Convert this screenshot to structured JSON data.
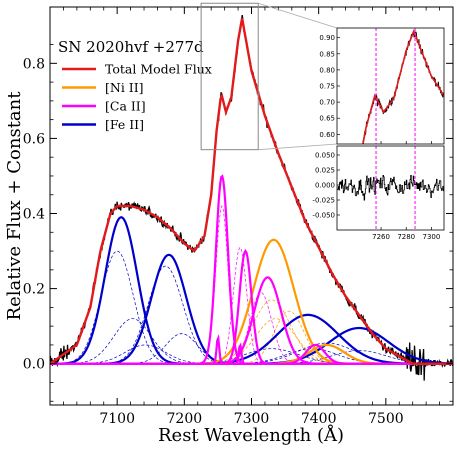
{
  "chart_data": [
    {
      "panel": "main",
      "type": "line",
      "title": "",
      "xlabel": "Rest Wavelength (Å)",
      "ylabel": "Relative Flux + Constant",
      "xlim": [
        7000,
        7600
      ],
      "ylim": [
        -0.11,
        0.95
      ],
      "x_ticks": [
        7100,
        7200,
        7300,
        7400,
        7500
      ],
      "y_ticks": [
        0.0,
        0.2,
        0.4,
        0.6,
        0.8
      ],
      "x_tick_labels": [
        "7100",
        "7200",
        "7300",
        "7400",
        "7500"
      ],
      "y_tick_labels": [
        "0.0",
        "0.2",
        "0.4",
        "0.6",
        "0.8"
      ],
      "grid": false,
      "legend_placement": "top-left",
      "legend_title": "SN 2020hvf +277d",
      "legend": [
        {
          "name": "Total Model Flux",
          "color": "#e31a1c"
        },
        {
          "name": "[Ni II]",
          "color": "#ff9900"
        },
        {
          "name": "[Ca II]",
          "color": "#ff00ff"
        },
        {
          "name": "[Fe II]",
          "color": "#0000cc"
        }
      ],
      "data_color": "#000000",
      "baseline": 0.0,
      "spectrum_points": [
        [
          7000,
          0.0
        ],
        [
          7040,
          0.05
        ],
        [
          7060,
          0.15
        ],
        [
          7075,
          0.3
        ],
        [
          7090,
          0.4
        ],
        [
          7100,
          0.42
        ],
        [
          7120,
          0.42
        ],
        [
          7140,
          0.41
        ],
        [
          7160,
          0.39
        ],
        [
          7180,
          0.36
        ],
        [
          7200,
          0.32
        ],
        [
          7215,
          0.3
        ],
        [
          7230,
          0.34
        ],
        [
          7240,
          0.45
        ],
        [
          7248,
          0.62
        ],
        [
          7255,
          0.72
        ],
        [
          7262,
          0.67
        ],
        [
          7270,
          0.71
        ],
        [
          7280,
          0.86
        ],
        [
          7286,
          0.92
        ],
        [
          7292,
          0.86
        ],
        [
          7300,
          0.78
        ],
        [
          7320,
          0.66
        ],
        [
          7340,
          0.56
        ],
        [
          7360,
          0.47
        ],
        [
          7380,
          0.38
        ],
        [
          7400,
          0.31
        ],
        [
          7420,
          0.24
        ],
        [
          7440,
          0.18
        ],
        [
          7460,
          0.13
        ],
        [
          7480,
          0.08
        ],
        [
          7500,
          0.04
        ],
        [
          7520,
          0.02
        ],
        [
          7540,
          0.0
        ],
        [
          7600,
          0.0
        ]
      ],
      "components": {
        "total_model": {
          "color": "#e31a1c"
        },
        "ni_ii": {
          "color": "#ff9900",
          "gaussians_solid": [
            [
              7333,
              0.33,
              30
            ],
            [
              7412,
              0.05,
              26
            ]
          ],
          "gaussians_dashed": [
            [
              7330,
              0.17,
              28
            ],
            [
              7336,
              0.12,
              30
            ],
            [
              7356,
              0.14,
              22
            ]
          ]
        },
        "ca_ii": {
          "color": "#ff00ff",
          "gaussians_solid": [
            [
              7256,
              0.5,
              9
            ],
            [
              7291,
              0.3,
              9
            ],
            [
              7324,
              0.23,
              20
            ],
            [
              7395,
              0.05,
              14
            ],
            [
              7250,
              0.07,
              2
            ],
            [
              7283,
              0.05,
              2
            ]
          ],
          "gaussians_dashed": [
            [
              7256,
              0.42,
              9
            ],
            [
              7283,
              0.31,
              10
            ],
            [
              7314,
              0.19,
              16
            ]
          ]
        },
        "fe_ii": {
          "color": "#0000cc",
          "gaussians_solid": [
            [
              7106,
              0.39,
              24
            ],
            [
              7177,
              0.29,
              26
            ],
            [
              7384,
              0.13,
              45
            ],
            [
              7460,
              0.095,
              44
            ]
          ],
          "gaussians_dashed": [
            [
              7100,
              0.3,
              24
            ],
            [
              7123,
              0.12,
              28
            ],
            [
              7142,
              0.05,
              30
            ],
            [
              7172,
              0.26,
              26
            ],
            [
              7196,
              0.08,
              24
            ],
            [
              7330,
              0.04,
              40
            ],
            [
              7390,
              0.04,
              38
            ],
            [
              7412,
              0.055,
              42
            ],
            [
              7460,
              0.035,
              40
            ]
          ]
        }
      }
    },
    {
      "panel": "inset_top",
      "type": "line",
      "xlim": [
        7225,
        7310
      ],
      "ylim": [
        0.57,
        0.93
      ],
      "y_ticks": [
        0.6,
        0.65,
        0.7,
        0.75,
        0.8,
        0.85,
        0.9
      ],
      "y_tick_labels": [
        "0.60",
        "0.65",
        "0.70",
        "0.75",
        "0.80",
        "0.85",
        "0.90"
      ],
      "vertical_lines": [
        7256,
        7287
      ],
      "vertical_line_color": "#ff00ff"
    },
    {
      "panel": "inset_residual",
      "type": "line",
      "xlim": [
        7225,
        7310
      ],
      "ylim": [
        -0.075,
        0.065
      ],
      "x_ticks": [
        7260,
        7280,
        7300
      ],
      "x_tick_labels": [
        "7260",
        "7280",
        "7300"
      ],
      "y_ticks": [
        -0.05,
        -0.025,
        0.0,
        0.025,
        0.05
      ],
      "y_tick_labels": [
        "-0.050",
        "-0.025",
        "0.000",
        "0.025",
        "0.050"
      ],
      "residual_amplitude": 0.025,
      "vertical_lines": [
        7256,
        7287
      ],
      "vertical_line_color": "#ff00ff"
    }
  ]
}
